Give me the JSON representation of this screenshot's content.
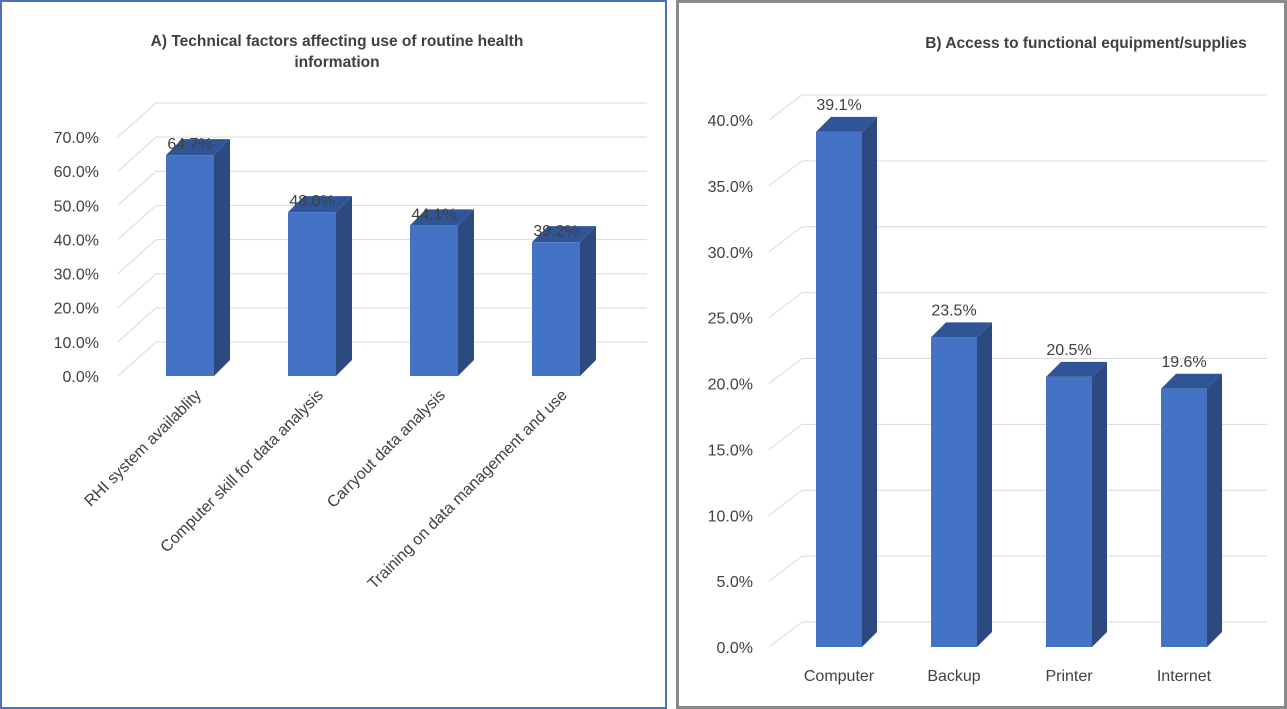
{
  "chart_data": [
    {
      "type": "bar",
      "title_lines": [
        "A) Technical factors affecting use of routine health",
        "information"
      ],
      "categories": [
        "RHI system availablity",
        "Computer skill for data analysis",
        "Carryout data analysis",
        "Training on data management and use"
      ],
      "values": [
        64.7,
        48.0,
        44.1,
        39.2
      ],
      "data_labels": [
        "64.7%",
        "48.0%",
        "44.1%",
        "39.2%"
      ],
      "ylim": [
        0,
        70
      ],
      "ytick_labels": [
        "0.0%",
        "10.0%",
        "20.0%",
        "30.0%",
        "40.0%",
        "50.0%",
        "60.0%",
        "70.0%"
      ],
      "grid": true,
      "bar_style": "3d"
    },
    {
      "type": "bar",
      "title_lines": [
        "B) Access to functional equipment/supplies"
      ],
      "categories": [
        "Computer",
        "Backup",
        "Printer",
        "Internet"
      ],
      "values": [
        39.1,
        23.5,
        20.5,
        19.6
      ],
      "data_labels": [
        "39.1%",
        "23.5%",
        "20.5%",
        "19.6%"
      ],
      "ylim": [
        0,
        40
      ],
      "ytick_labels": [
        "0.0%",
        "5.0%",
        "10.0%",
        "15.0%",
        "20.0%",
        "25.0%",
        "30.0%",
        "35.0%",
        "40.0%"
      ],
      "grid": true,
      "bar_style": "3d"
    }
  ],
  "colors": {
    "bar_front": "#4472c4",
    "bar_side": "#2c4a80",
    "bar_top": "#2f5597",
    "grid": "#d9d9d9",
    "text": "#404040",
    "panel_a_border": "#4a74b6",
    "panel_b_border": "#8a8a8a"
  }
}
